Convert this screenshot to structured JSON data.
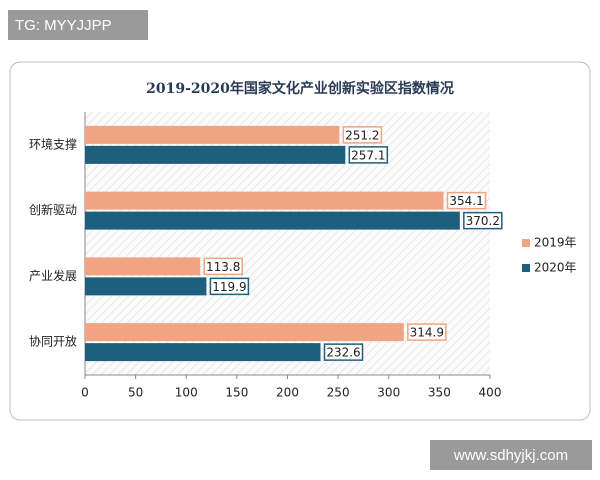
{
  "watermarks": {
    "top_left": "TG: MYYJJPP",
    "bottom_right": "www.sdhyjkj.com"
  },
  "chart_data": {
    "type": "hbar",
    "title": "2019-2020年国家文化产业创新实验区指数情况",
    "categories": [
      "环境支撑",
      "创新驱动",
      "产业发展",
      "协同开放"
    ],
    "series": [
      {
        "name": "2019年",
        "color": "#f0a481",
        "values": [
          251.2,
          354.1,
          113.8,
          314.9
        ]
      },
      {
        "name": "2020年",
        "color": "#1d5f7c",
        "values": [
          257.1,
          370.2,
          119.9,
          232.6
        ]
      }
    ],
    "xlim": [
      0,
      400
    ],
    "xticks": [
      0,
      50,
      100,
      150,
      200,
      250,
      300,
      350,
      400
    ],
    "legend": "right"
  }
}
